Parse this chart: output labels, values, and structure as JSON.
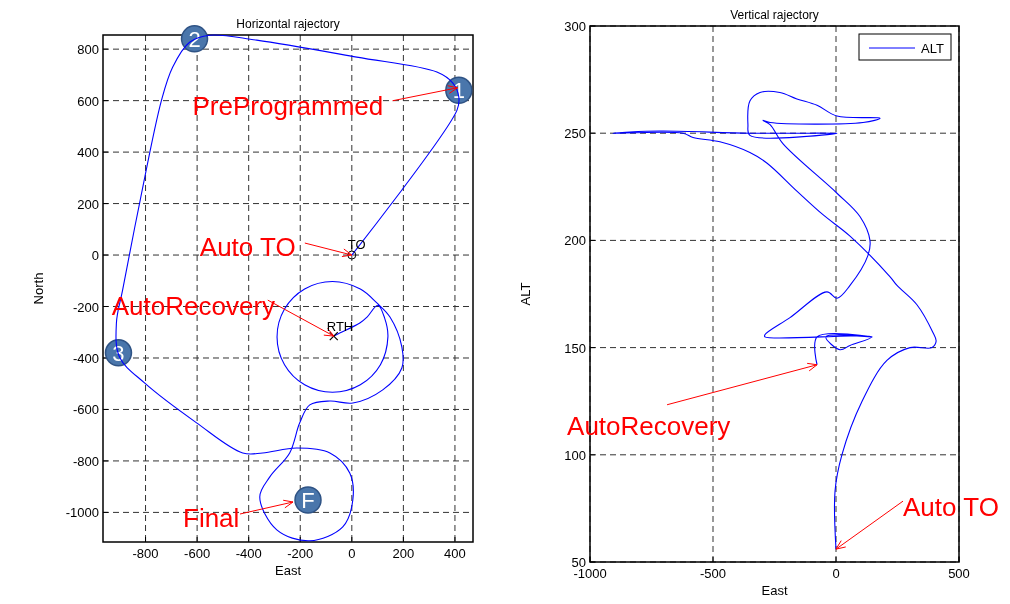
{
  "chart_data": [
    {
      "type": "line",
      "title": "Horizontal rajectory",
      "xlabel": "East",
      "ylabel": "North",
      "xlim": [
        -965,
        470
      ],
      "ylim": [
        -1115,
        855
      ],
      "xticks": [
        -800,
        -600,
        -400,
        -200,
        0,
        200,
        400
      ],
      "yticks": [
        -1000,
        -800,
        -600,
        -400,
        -200,
        0,
        200,
        400,
        600,
        800
      ],
      "grid": true,
      "series": [
        {
          "color": "#0000ff",
          "x": [
            0,
            408,
            415,
            392,
            330,
            19,
            -369,
            -551,
            -629,
            -695,
            -738,
            -823,
            -889,
            -913,
            -901,
            -804,
            -602,
            -423,
            -346,
            -214,
            -85,
            -8,
            4,
            -35,
            -163,
            -291,
            -357,
            -318,
            -241,
            -202,
            -163,
            -85,
            4,
            120,
            194,
            194,
            148,
            97,
            33,
            -75,
            -183,
            -261,
            -290,
            -261,
            -183,
            -75,
            33,
            111,
            140,
            127,
            101,
            60,
            31,
            -47,
            -70
          ],
          "values": [
            0,
            563,
            614,
            668,
            711,
            769,
            835,
            854,
            827,
            730,
            602,
            202,
            -136,
            -264,
            -396,
            -497,
            -652,
            -769,
            -769,
            -750,
            -769,
            -847,
            -951,
            -1056,
            -1110,
            -1068,
            -940,
            -862,
            -769,
            -652,
            -582,
            -567,
            -575,
            -524,
            -439,
            -357,
            -241,
            -186,
            -132,
            -103,
            -132,
            -210,
            -318,
            -426,
            -504,
            -533,
            -504,
            -426,
            -318,
            -244,
            -195,
            -240,
            -264,
            -303,
            -315
          ]
        },
        {
          "type": "scatter",
          "marker": "circle",
          "color": "#000000",
          "x": [
            0
          ],
          "values": [
            0
          ]
        },
        {
          "type": "scatter",
          "marker": "cross",
          "color": "#000000",
          "x": [
            -70
          ],
          "values": [
            -315
          ]
        }
      ],
      "annotations": [
        {
          "text": "1",
          "x": 415,
          "y": 640
        },
        {
          "text": "2",
          "x": -610,
          "y": 840
        },
        {
          "text": "3",
          "x": -905,
          "y": -380
        },
        "F",
        {
          "text": "PreProgrammed",
          "x": 410,
          "y": 650
        },
        {
          "text": "Auto TO",
          "x": 0,
          "y": 0
        },
        {
          "text": "AutoRecovery",
          "x": -70,
          "y": -315
        },
        "Final",
        {
          "text": "TO",
          "x": 0,
          "y": 0
        },
        {
          "text": "RTH",
          "x": -70,
          "y": -315
        }
      ]
    },
    {
      "type": "line",
      "title": "Vertical rajectory",
      "xlabel": "East",
      "ylabel": "ALT",
      "xlim": [
        -1000,
        500
      ],
      "ylim": [
        50,
        300
      ],
      "xticks": [
        -1000,
        -500,
        0,
        500
      ],
      "yticks": [
        50,
        100,
        150,
        200,
        250,
        300
      ],
      "grid": true,
      "legend": "top right",
      "series": [
        {
          "name": "ALT",
          "color": "#0000ff",
          "x": [
            0,
            -4,
            24,
            106,
            207,
            301,
            390,
            407,
            394,
            329,
            248,
            220,
            57,
            -53,
            -159,
            -280,
            -350,
            -472,
            -581,
            -622,
            -906,
            -716,
            -350,
            4,
            -350,
            -358,
            -350,
            -309,
            -228,
            -159,
            -77,
            4,
            179,
            110,
            -268,
            -297,
            -268,
            -215,
            4,
            98,
            138,
            130,
            57,
            4,
            -37,
            -187,
            -289,
            -289,
            146,
            57,
            16,
            -41,
            146,
            -77,
            -77
          ],
          "values": [
            56,
            83,
            100,
            125,
            144,
            150,
            150,
            153,
            157,
            170,
            179,
            183,
            202,
            212,
            223,
            236,
            241,
            246,
            248,
            250,
            250,
            251,
            250,
            250,
            249,
            254,
            265,
            269,
            269,
            266,
            263,
            258,
            257,
            255,
            255,
            256,
            254,
            245,
            222,
            211,
            200,
            193,
            179,
            173,
            176,
            164,
            156,
            155,
            155,
            151,
            149,
            155,
            155,
            155,
            142
          ]
        }
      ],
      "annotations": [
        {
          "text": "AutoRecovery",
          "x": -77,
          "y": 142
        },
        {
          "text": "Auto TO",
          "x": 0,
          "y": 56
        }
      ]
    }
  ]
}
